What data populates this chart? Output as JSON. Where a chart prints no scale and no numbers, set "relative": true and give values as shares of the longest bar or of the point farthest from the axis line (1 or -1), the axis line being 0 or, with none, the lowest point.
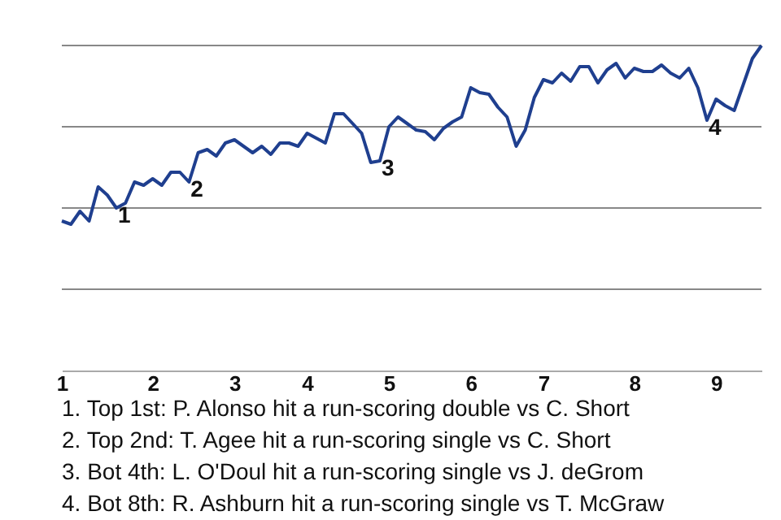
{
  "chart_data": {
    "type": "line",
    "relative": true,
    "categories": [
      "1",
      null,
      null,
      null,
      null,
      null,
      null,
      null,
      null,
      null,
      "2",
      null,
      null,
      null,
      null,
      null,
      null,
      null,
      null,
      "3",
      null,
      null,
      null,
      null,
      null,
      null,
      null,
      "4",
      null,
      null,
      null,
      null,
      null,
      null,
      null,
      null,
      "5",
      null,
      null,
      null,
      null,
      null,
      null,
      null,
      null,
      "6",
      null,
      null,
      null,
      null,
      null,
      null,
      null,
      "7",
      null,
      null,
      null,
      null,
      null,
      null,
      null,
      null,
      null,
      "8",
      null,
      null,
      null,
      null,
      null,
      null,
      null,
      null,
      "9",
      null,
      null,
      null,
      null,
      null
    ],
    "series": [
      {
        "color": "#1f3f8f",
        "values": [
          0.46,
          0.45,
          0.49,
          0.46,
          0.565,
          0.54,
          0.5,
          0.515,
          0.58,
          0.57,
          0.59,
          0.57,
          0.61,
          0.61,
          0.58,
          0.67,
          0.68,
          0.66,
          0.7,
          0.71,
          0.69,
          0.67,
          0.69,
          0.665,
          0.7,
          0.7,
          0.69,
          0.73,
          0.715,
          0.7,
          0.79,
          0.79,
          0.76,
          0.73,
          0.64,
          0.645,
          0.75,
          0.78,
          0.76,
          0.74,
          0.735,
          0.71,
          0.745,
          0.765,
          0.78,
          0.87,
          0.855,
          0.85,
          0.81,
          0.78,
          0.69,
          0.74,
          0.84,
          0.895,
          0.885,
          0.915,
          0.89,
          0.935,
          0.935,
          0.885,
          0.925,
          0.945,
          0.9,
          0.93,
          0.92,
          0.92,
          0.94,
          0.915,
          0.9,
          0.93,
          0.87,
          0.77,
          0.835,
          0.815,
          0.8,
          0.88,
          0.96,
          1.0
        ]
      }
    ],
    "ref_lines": [
      {
        "axis": "y",
        "value": 0.25,
        "color": "#888888"
      },
      {
        "axis": "y",
        "value": 0.5,
        "color": "#888888"
      },
      {
        "axis": "y",
        "value": 0.75,
        "color": "#888888"
      },
      {
        "axis": "y",
        "value": 1.0,
        "color": "#888888"
      }
    ],
    "annotations": [
      {
        "text": "1",
        "y": 0.5
      },
      {
        "text": "2",
        "y": 0.58
      },
      {
        "text": "3",
        "y": 0.645
      },
      {
        "text": "4",
        "y": 0.77
      },
      "1. Top 1st: P. Alonso hit a run-scoring double vs C. Short",
      "2. Top 2nd: T. Agee hit a run-scoring single vs C. Short",
      "3. Bot 4th: L. O'Doul hit a run-scoring single vs J. deGrom",
      "4. Bot 8th: R. Ashburn hit a run-scoring single vs T. McGraw"
    ],
    "grid": false,
    "marker": "none",
    "line_style": "solid"
  }
}
